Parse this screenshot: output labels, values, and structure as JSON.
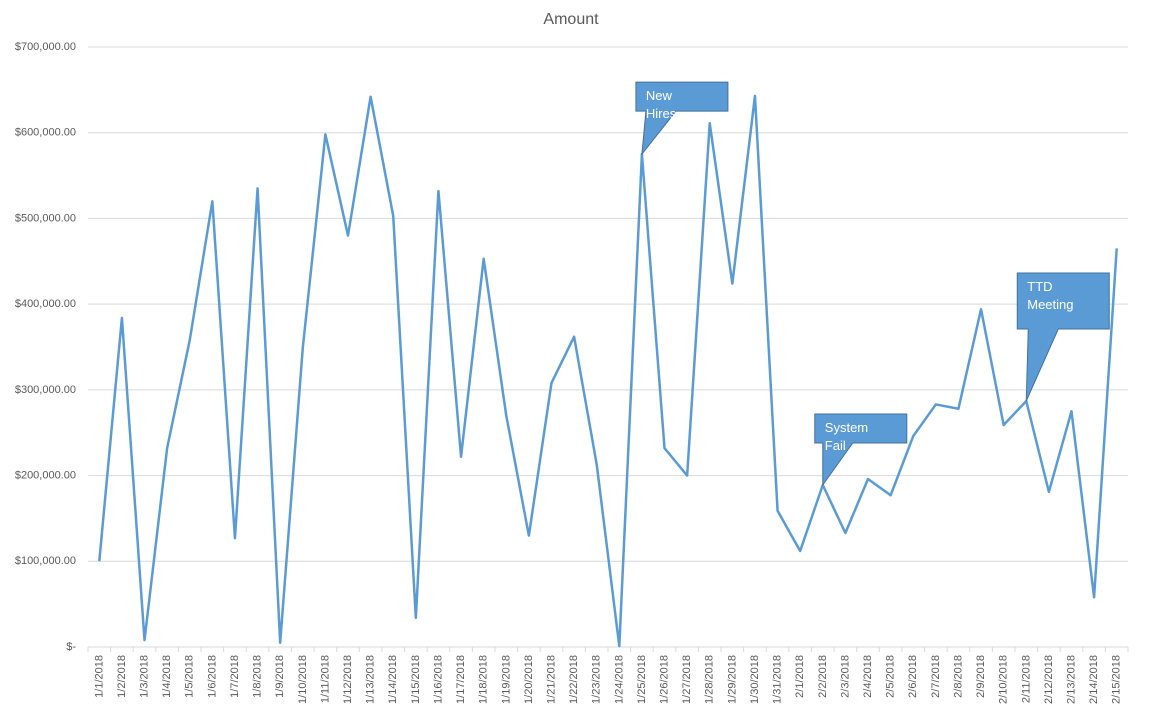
{
  "chart_data": {
    "type": "line",
    "title": "Amount",
    "categories": [
      "1/1/2018",
      "1/2/2018",
      "1/3/2018",
      "1/4/2018",
      "1/5/2018",
      "1/6/2018",
      "1/7/2018",
      "1/8/2018",
      "1/9/2018",
      "1/10/2018",
      "1/11/2018",
      "1/12/2018",
      "1/13/2018",
      "1/14/2018",
      "1/15/2018",
      "1/16/2018",
      "1/17/2018",
      "1/18/2018",
      "1/19/2018",
      "1/20/2018",
      "1/21/2018",
      "1/22/2018",
      "1/23/2018",
      "1/24/2018",
      "1/25/2018",
      "1/26/2018",
      "1/27/2018",
      "1/28/2018",
      "1/29/2018",
      "1/30/2018",
      "1/31/2018",
      "2/1/2018",
      "2/2/2018",
      "2/3/2018",
      "2/4/2018",
      "2/5/2018",
      "2/6/2018",
      "2/7/2018",
      "2/8/2018",
      "2/9/2018",
      "2/10/2018",
      "2/11/2018",
      "2/12/2018",
      "2/13/2018",
      "2/14/2018",
      "2/15/2018"
    ],
    "values": [
      100000,
      384000,
      8000,
      232000,
      358000,
      520000,
      127000,
      535000,
      5000,
      349000,
      598000,
      480000,
      642000,
      503000,
      34000,
      532000,
      222000,
      453000,
      270000,
      130000,
      308000,
      362000,
      213000,
      1000,
      575000,
      232000,
      200000,
      611000,
      424000,
      643000,
      159000,
      112000,
      189000,
      133000,
      196000,
      177000,
      246000,
      283000,
      278000,
      394000,
      259000,
      287000,
      181000,
      275000,
      58000,
      465000
    ],
    "color": "#5b9bd5",
    "ylim": [
      0,
      700000
    ],
    "yticks": [
      {
        "value": 0,
        "label": "$-"
      },
      {
        "value": 100000,
        "label": "$100,000.00"
      },
      {
        "value": 200000,
        "label": "$200,000.00"
      },
      {
        "value": 300000,
        "label": "$300,000.00"
      },
      {
        "value": 400000,
        "label": "$400,000.00"
      },
      {
        "value": 500000,
        "label": "$500,000.00"
      },
      {
        "value": 600000,
        "label": "$600,000.00"
      },
      {
        "value": 700000,
        "label": "$700,000.00"
      }
    ],
    "grid": true,
    "annotations": [
      {
        "text": "New Hires",
        "x": "1/25/2018"
      },
      {
        "text": "System Fail",
        "x": "2/2/2018"
      },
      {
        "text": "TTD Meeting",
        "x": "2/11/2018"
      }
    ]
  }
}
